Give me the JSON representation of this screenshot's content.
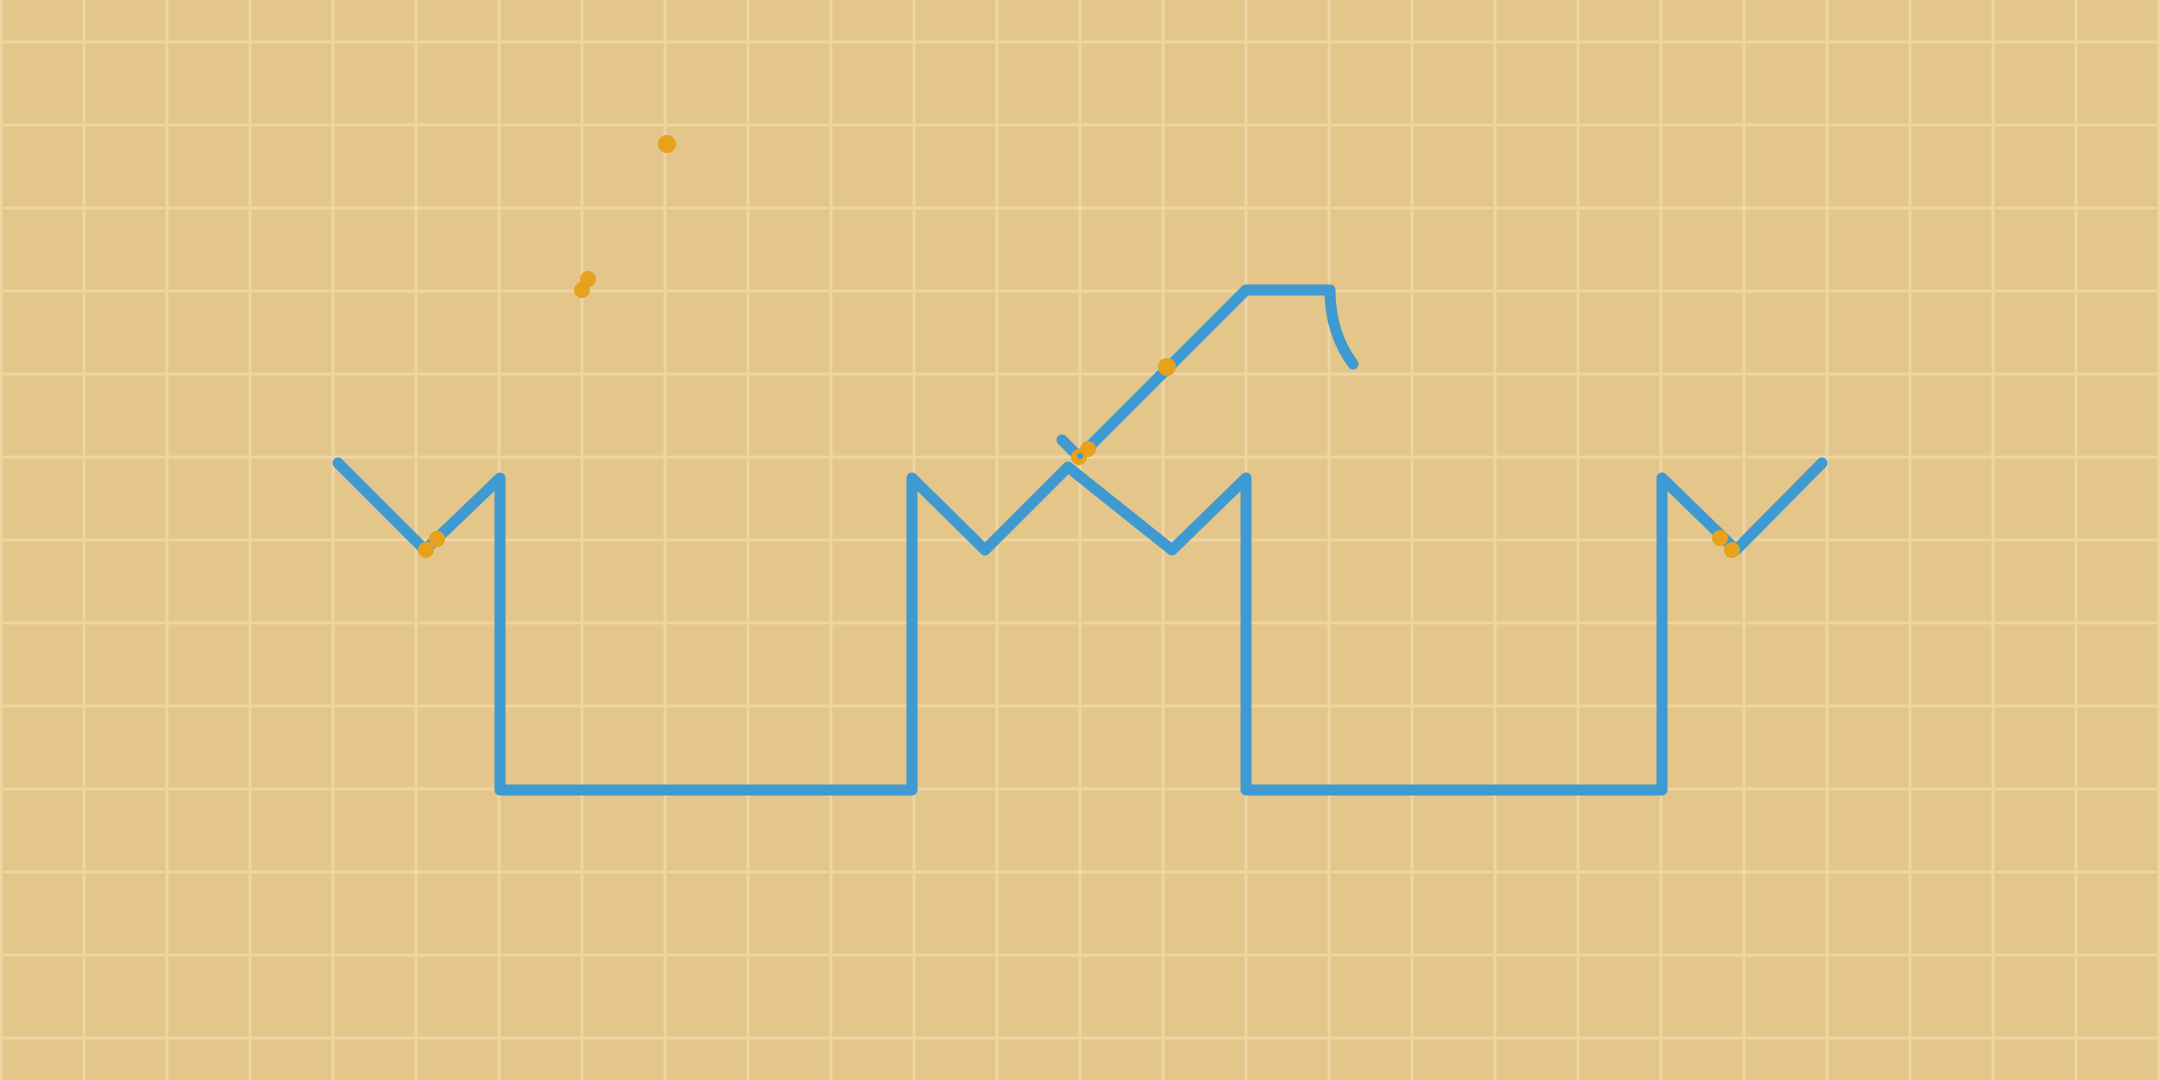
{
  "game": {
    "board": {
      "background_color": "#E4C68A",
      "grid_color": "#EDD6A3"
    },
    "drawn_path": {
      "stroke_color": "#3E9AD0"
    },
    "markers": {
      "fill_color": "#E8A11D",
      "count": 11
    }
  }
}
